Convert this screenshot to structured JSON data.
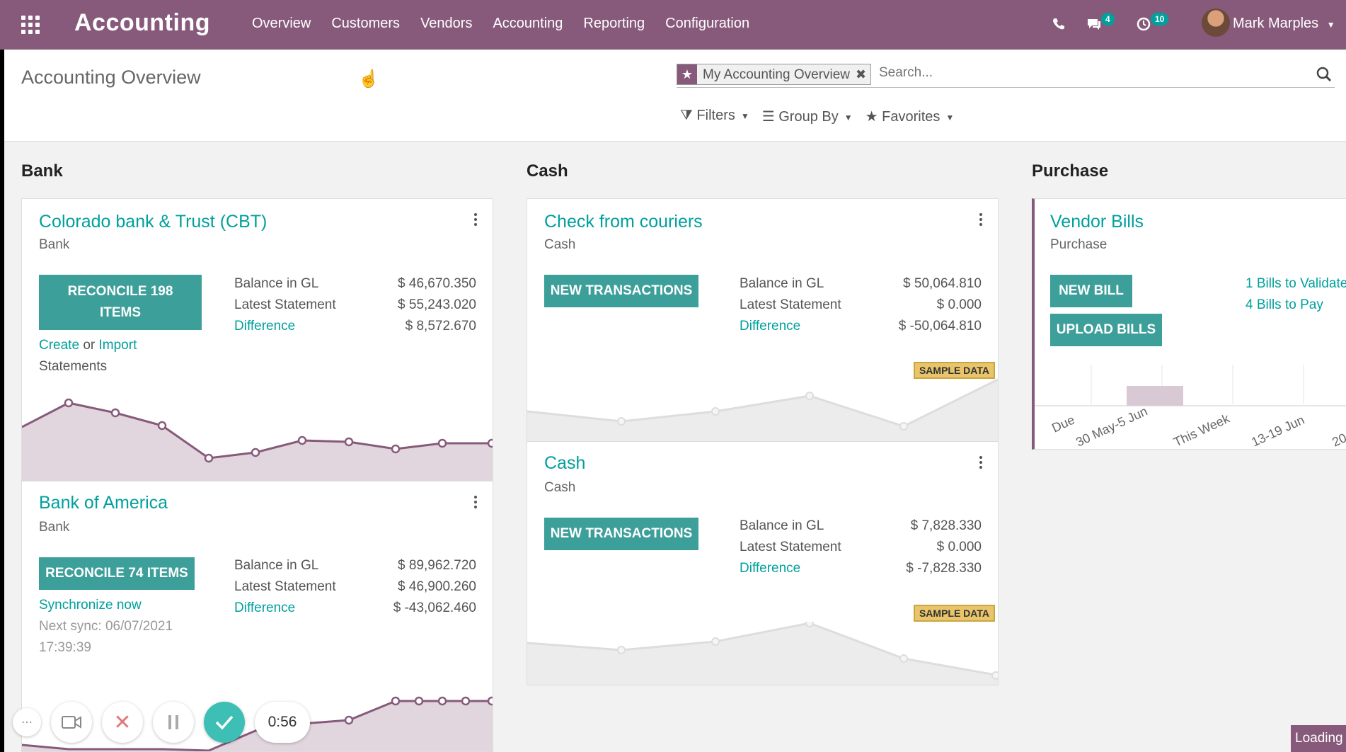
{
  "navbar": {
    "app_name": "Accounting",
    "menu": [
      "Overview",
      "Customers",
      "Vendors",
      "Accounting",
      "Reporting",
      "Configuration"
    ],
    "messages_count": "4",
    "activities_count": "10",
    "user_name": "Mark Marples",
    "color": "#875a7b"
  },
  "control": {
    "page_title": "Accounting Overview",
    "facet_label": "My Accounting Overview",
    "search_placeholder": "Search...",
    "filters_label": "Filters",
    "groupby_label": "Group By",
    "favorites_label": "Favorites"
  },
  "columns": {
    "bank": "Bank",
    "cash": "Cash",
    "purchase": "Purchase"
  },
  "cards": {
    "cbt": {
      "title": "Colorado bank & Trust (CBT)",
      "subtitle": "Bank",
      "button": "RECONCILE 198 ITEMS",
      "balance_label": "Balance in GL",
      "balance": "$ 46,670.350",
      "statement_label": "Latest Statement",
      "statement": "$ 55,243.020",
      "difference_label": "Difference",
      "difference": "$ 8,572.670",
      "create": "Create",
      "or": "or",
      "import": "Import",
      "statements": "Statements"
    },
    "boa": {
      "title": "Bank of America",
      "subtitle": "Bank",
      "button": "RECONCILE 74 ITEMS",
      "balance_label": "Balance in GL",
      "balance": "$ 89,962.720",
      "statement_label": "Latest Statement",
      "statement": "$ 46,900.260",
      "difference_label": "Difference",
      "difference": "$ -43,062.460",
      "sync": "Synchronize now",
      "next_sync": "Next sync: 06/07/2021",
      "next_sync_time": "17:39:39"
    },
    "check": {
      "title": "Check from couriers",
      "subtitle": "Cash",
      "button": "NEW TRANSACTIONS",
      "balance_label": "Balance in GL",
      "balance": "$ 50,064.810",
      "statement_label": "Latest Statement",
      "statement": "$ 0.000",
      "difference_label": "Difference",
      "difference": "$ -50,064.810",
      "sample": "SAMPLE DATA"
    },
    "cash": {
      "title": "Cash",
      "subtitle": "Cash",
      "button": "NEW TRANSACTIONS",
      "balance_label": "Balance in GL",
      "balance": "$ 7,828.330",
      "statement_label": "Latest Statement",
      "statement": "$ 0.000",
      "difference_label": "Difference",
      "difference": "$ -7,828.330",
      "sample": "SAMPLE DATA"
    },
    "vendor": {
      "title": "Vendor Bills",
      "subtitle": "Purchase",
      "new_bill": "NEW BILL",
      "upload": "UPLOAD BILLS",
      "to_validate": "1 Bills to Validate",
      "to_pay": "4 Bills to Pay",
      "axis": [
        "Due",
        "30 May-5 Jun",
        "This Week",
        "13-19 Jun",
        "20"
      ]
    }
  },
  "recorder": {
    "timer": "0:56"
  },
  "loading": "Loading"
}
